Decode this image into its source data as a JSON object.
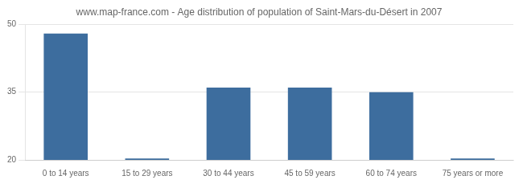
{
  "chart_data": {
    "type": "bar",
    "title": "www.map-france.com - Age distribution of population of Saint-Mars-du-Désert in 2007",
    "categories": [
      "0 to 14 years",
      "15 to 29 years",
      "30 to 44 years",
      "45 to 59 years",
      "60 to 74 years",
      "75 years or more"
    ],
    "values": [
      48,
      20.3,
      36,
      36,
      35,
      20.3
    ],
    "color": "#3d6d9e",
    "ylim": [
      20,
      50
    ],
    "yticks": [
      20,
      35,
      50
    ],
    "grid": true
  }
}
